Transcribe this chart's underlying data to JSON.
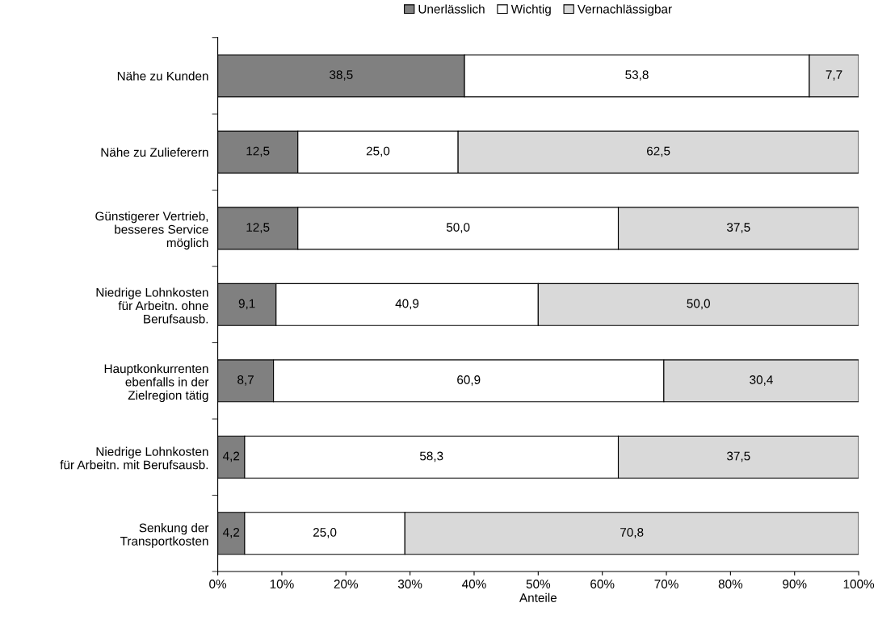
{
  "chart_data": {
    "type": "bar",
    "orientation": "horizontal",
    "stacked": true,
    "categories": [
      "Nähe zu Kunden",
      "Nähe zu Zulieferern",
      "Günstigerer Vertrieb,\nbesseres Service\nmöglich",
      "Niedrige Lohnkosten\nfür Arbeitn. ohne\nBerufsausb.",
      "Hauptkonkurrenten\nebenfalls in der\nZielregion tätig",
      "Niedrige Lohnkosten\nfür Arbeitn. mit Berufsausb.",
      "Senkung der\nTransportkosten"
    ],
    "series": [
      {
        "name": "Unerlässlich",
        "color": "#808080",
        "values": [
          38.5,
          12.5,
          12.5,
          9.1,
          8.7,
          4.2,
          4.2
        ],
        "value_labels": [
          "38,5",
          "12,5",
          "12,5",
          "9,1",
          "8,7",
          "4,2",
          "4,2"
        ]
      },
      {
        "name": "Wichtig",
        "color": "#ffffff",
        "values": [
          53.8,
          25.0,
          50.0,
          40.9,
          60.9,
          58.3,
          25.0
        ],
        "value_labels": [
          "53,8",
          "25,0",
          "50,0",
          "40,9",
          "60,9",
          "58,3",
          "25,0"
        ]
      },
      {
        "name": "Vernachlässigbar",
        "color": "#d9d9d9",
        "values": [
          7.7,
          62.5,
          37.5,
          50.0,
          30.4,
          37.5,
          70.8
        ],
        "value_labels": [
          "7,7",
          "62,5",
          "37,5",
          "50,0",
          "30,4",
          "37,5",
          "70,8"
        ]
      }
    ],
    "xlabel": "Anteile",
    "xlim": [
      0,
      100
    ],
    "xticks": [
      {
        "value": 0,
        "label": "0%"
      },
      {
        "value": 10,
        "label": "10%"
      },
      {
        "value": 20,
        "label": "20%"
      },
      {
        "value": 30,
        "label": "30%"
      },
      {
        "value": 40,
        "label": "40%"
      },
      {
        "value": 50,
        "label": "50%"
      },
      {
        "value": 60,
        "label": "60%"
      },
      {
        "value": 70,
        "label": "70%"
      },
      {
        "value": 80,
        "label": "80%"
      },
      {
        "value": 90,
        "label": "90%"
      },
      {
        "value": 100,
        "label": "100%"
      }
    ],
    "legend": "top",
    "grid": false
  }
}
